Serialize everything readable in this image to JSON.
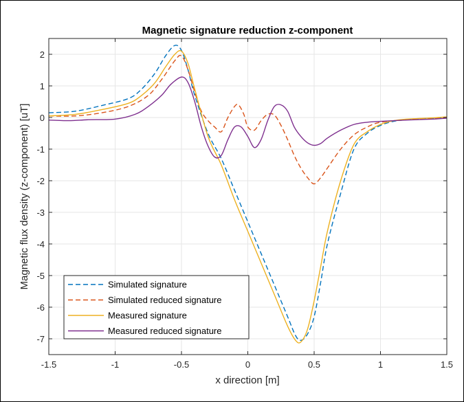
{
  "chart_data": {
    "type": "line",
    "title": "Magnetic signature reduction z-component",
    "xlabel": "x direction [m]",
    "ylabel": "Magnetic flux density (z-component) [uT]",
    "xlim": [
      -1.5,
      1.5
    ],
    "ylim": [
      -7.5,
      2.5
    ],
    "xticks": [
      -1.5,
      -1,
      -0.5,
      0,
      0.5,
      1,
      1.5
    ],
    "xtick_labels": [
      "-1.5",
      "-1",
      "-0.5",
      "0",
      "0.5",
      "1",
      "1.5"
    ],
    "yticks": [
      -7,
      -6,
      -5,
      -4,
      -3,
      -2,
      -1,
      0,
      1,
      2
    ],
    "ytick_labels": [
      "-7",
      "-6",
      "-5",
      "-4",
      "-3",
      "-2",
      "-1",
      "0",
      "1",
      "2"
    ],
    "grid": true,
    "legend_location": "bottom-left",
    "series": [
      {
        "name": "Simulated signature",
        "color": "#0072BD",
        "style": "dashed",
        "x": [
          -1.5,
          -1.3,
          -1.1,
          -0.9,
          -0.8,
          -0.7,
          -0.62,
          -0.55,
          -0.5,
          -0.45,
          -0.4,
          -0.3,
          -0.2,
          -0.1,
          0.0,
          0.1,
          0.2,
          0.3,
          0.36,
          0.4,
          0.45,
          0.5,
          0.55,
          0.6,
          0.7,
          0.8,
          0.9,
          1.0,
          1.1,
          1.2,
          1.3,
          1.4,
          1.5
        ],
        "y": [
          0.15,
          0.2,
          0.38,
          0.6,
          0.9,
          1.4,
          1.95,
          2.28,
          2.12,
          1.5,
          0.7,
          -0.5,
          -1.3,
          -2.3,
          -3.3,
          -4.3,
          -5.3,
          -6.3,
          -6.9,
          -7.05,
          -6.85,
          -6.3,
          -5.2,
          -4.0,
          -2.4,
          -1.0,
          -0.5,
          -0.25,
          -0.12,
          -0.07,
          -0.04,
          -0.02,
          0.0
        ]
      },
      {
        "name": "Simulated reduced signature",
        "color": "#D95319",
        "style": "dashed",
        "x": [
          -1.5,
          -1.3,
          -1.1,
          -0.9,
          -0.75,
          -0.65,
          -0.55,
          -0.5,
          -0.45,
          -0.4,
          -0.35,
          -0.3,
          -0.25,
          -0.2,
          -0.15,
          -0.1,
          -0.07,
          -0.03,
          0.0,
          0.05,
          0.1,
          0.15,
          0.2,
          0.25,
          0.3,
          0.35,
          0.4,
          0.45,
          0.5,
          0.55,
          0.6,
          0.7,
          0.8,
          0.9,
          1.0,
          1.2,
          1.4,
          1.5
        ],
        "y": [
          0.05,
          0.05,
          0.15,
          0.35,
          0.7,
          1.2,
          1.8,
          1.95,
          1.5,
          0.8,
          0.2,
          -0.1,
          -0.3,
          -0.45,
          0.0,
          0.35,
          0.4,
          0.1,
          -0.3,
          -0.4,
          -0.1,
          0.1,
          0.08,
          -0.25,
          -0.7,
          -1.2,
          -1.6,
          -1.9,
          -2.1,
          -1.9,
          -1.6,
          -1.0,
          -0.55,
          -0.3,
          -0.15,
          -0.07,
          -0.02,
          0.0
        ]
      },
      {
        "name": "Measured signature",
        "color": "#EDB120",
        "style": "solid",
        "x": [
          -1.5,
          -1.3,
          -1.1,
          -0.9,
          -0.8,
          -0.7,
          -0.62,
          -0.55,
          -0.5,
          -0.45,
          -0.4,
          -0.3,
          -0.2,
          -0.1,
          0.0,
          0.1,
          0.2,
          0.3,
          0.36,
          0.4,
          0.45,
          0.5,
          0.55,
          0.6,
          0.7,
          0.8,
          0.9,
          1.0,
          1.1,
          1.2,
          1.3,
          1.4,
          1.5
        ],
        "y": [
          0.05,
          0.1,
          0.25,
          0.45,
          0.7,
          1.1,
          1.6,
          2.0,
          2.1,
          1.7,
          0.9,
          -0.6,
          -1.5,
          -2.6,
          -3.6,
          -4.6,
          -5.6,
          -6.6,
          -7.05,
          -7.1,
          -6.7,
          -5.8,
          -4.7,
          -3.6,
          -2.0,
          -0.85,
          -0.45,
          -0.22,
          -0.1,
          -0.05,
          -0.03,
          -0.01,
          0.02
        ]
      },
      {
        "name": "Measured reduced signature",
        "color": "#7E2F8E",
        "style": "solid",
        "x": [
          -1.5,
          -1.35,
          -1.2,
          -1.0,
          -0.85,
          -0.75,
          -0.65,
          -0.58,
          -0.5,
          -0.45,
          -0.4,
          -0.35,
          -0.3,
          -0.25,
          -0.2,
          -0.15,
          -0.1,
          -0.05,
          0.0,
          0.05,
          0.1,
          0.15,
          0.2,
          0.25,
          0.3,
          0.35,
          0.4,
          0.45,
          0.5,
          0.55,
          0.6,
          0.7,
          0.8,
          0.9,
          1.0,
          1.2,
          1.4,
          1.5
        ],
        "y": [
          -0.08,
          -0.1,
          -0.07,
          -0.05,
          0.1,
          0.35,
          0.7,
          1.05,
          1.28,
          1.1,
          0.5,
          -0.3,
          -0.9,
          -1.25,
          -1.2,
          -0.7,
          -0.3,
          -0.3,
          -0.6,
          -0.95,
          -0.7,
          -0.1,
          0.35,
          0.4,
          0.2,
          -0.3,
          -0.6,
          -0.8,
          -0.88,
          -0.82,
          -0.65,
          -0.4,
          -0.22,
          -0.15,
          -0.12,
          -0.08,
          -0.05,
          -0.02
        ]
      }
    ]
  }
}
